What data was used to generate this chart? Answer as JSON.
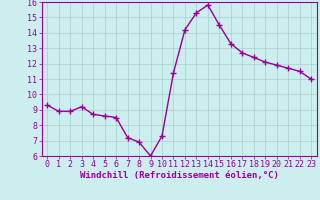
{
  "x": [
    0,
    1,
    2,
    3,
    4,
    5,
    6,
    7,
    8,
    9,
    10,
    11,
    12,
    13,
    14,
    15,
    16,
    17,
    18,
    19,
    20,
    21,
    22,
    23
  ],
  "y": [
    9.3,
    8.9,
    8.9,
    9.2,
    8.7,
    8.6,
    8.5,
    7.2,
    6.9,
    6.0,
    7.3,
    11.4,
    14.2,
    15.3,
    15.8,
    14.5,
    13.3,
    12.7,
    12.4,
    12.1,
    11.9,
    11.7,
    11.5,
    11.0
  ],
  "line_color": "#990099",
  "marker": "+",
  "marker_size": 4,
  "line_width": 1.0,
  "bg_color": "#cceeee",
  "grid_color": "#aacccc",
  "xlabel": "Windchill (Refroidissement éolien,°C)",
  "xlabel_color": "#990099",
  "tick_color": "#990099",
  "ylim": [
    6,
    16
  ],
  "yticks": [
    6,
    7,
    8,
    9,
    10,
    11,
    12,
    13,
    14,
    15,
    16
  ],
  "xlim": [
    -0.5,
    23.5
  ],
  "xticks": [
    0,
    1,
    2,
    3,
    4,
    5,
    6,
    7,
    8,
    9,
    10,
    11,
    12,
    13,
    14,
    15,
    16,
    17,
    18,
    19,
    20,
    21,
    22,
    23
  ],
  "spine_color": "#990099",
  "xlabel_fontsize": 6.5,
  "tick_fontsize": 6.0
}
